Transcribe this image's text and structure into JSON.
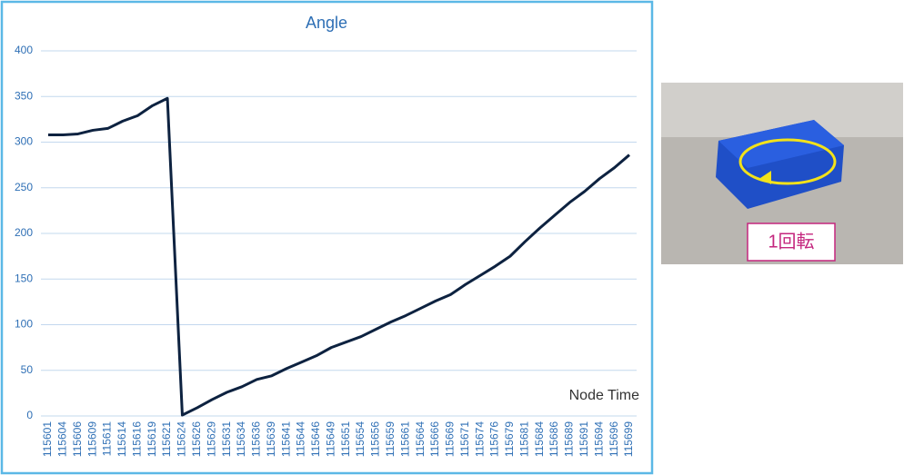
{
  "chart_data": {
    "type": "line",
    "title": "Angle",
    "x_label": "Node Time",
    "categories": [
      "115601",
      "115604",
      "115606",
      "115609",
      "115611",
      "115614",
      "115616",
      "115619",
      "115621",
      "115624",
      "115626",
      "115629",
      "115631",
      "115634",
      "115636",
      "115639",
      "115641",
      "115644",
      "115646",
      "115649",
      "115651",
      "115654",
      "115656",
      "115659",
      "115661",
      "115664",
      "115666",
      "115669",
      "115671",
      "115674",
      "115676",
      "115679",
      "115681",
      "115684",
      "115686",
      "115689",
      "115691",
      "115694",
      "115696",
      "115699"
    ],
    "values": [
      308,
      308,
      309,
      313,
      315,
      323,
      329,
      340,
      348,
      1,
      9,
      18,
      26,
      32,
      40,
      44,
      52,
      59,
      66,
      75,
      81,
      87,
      95,
      103,
      110,
      118,
      126,
      133,
      144,
      154,
      164,
      175,
      191,
      206,
      220,
      234,
      246,
      260,
      272,
      286
    ],
    "color": "#0d2240",
    "ylim": [
      0,
      400
    ],
    "yticks": [
      0,
      50,
      100,
      150,
      200,
      250,
      300,
      350,
      400
    ],
    "grid": true
  },
  "image": {
    "caption": "1回転"
  }
}
